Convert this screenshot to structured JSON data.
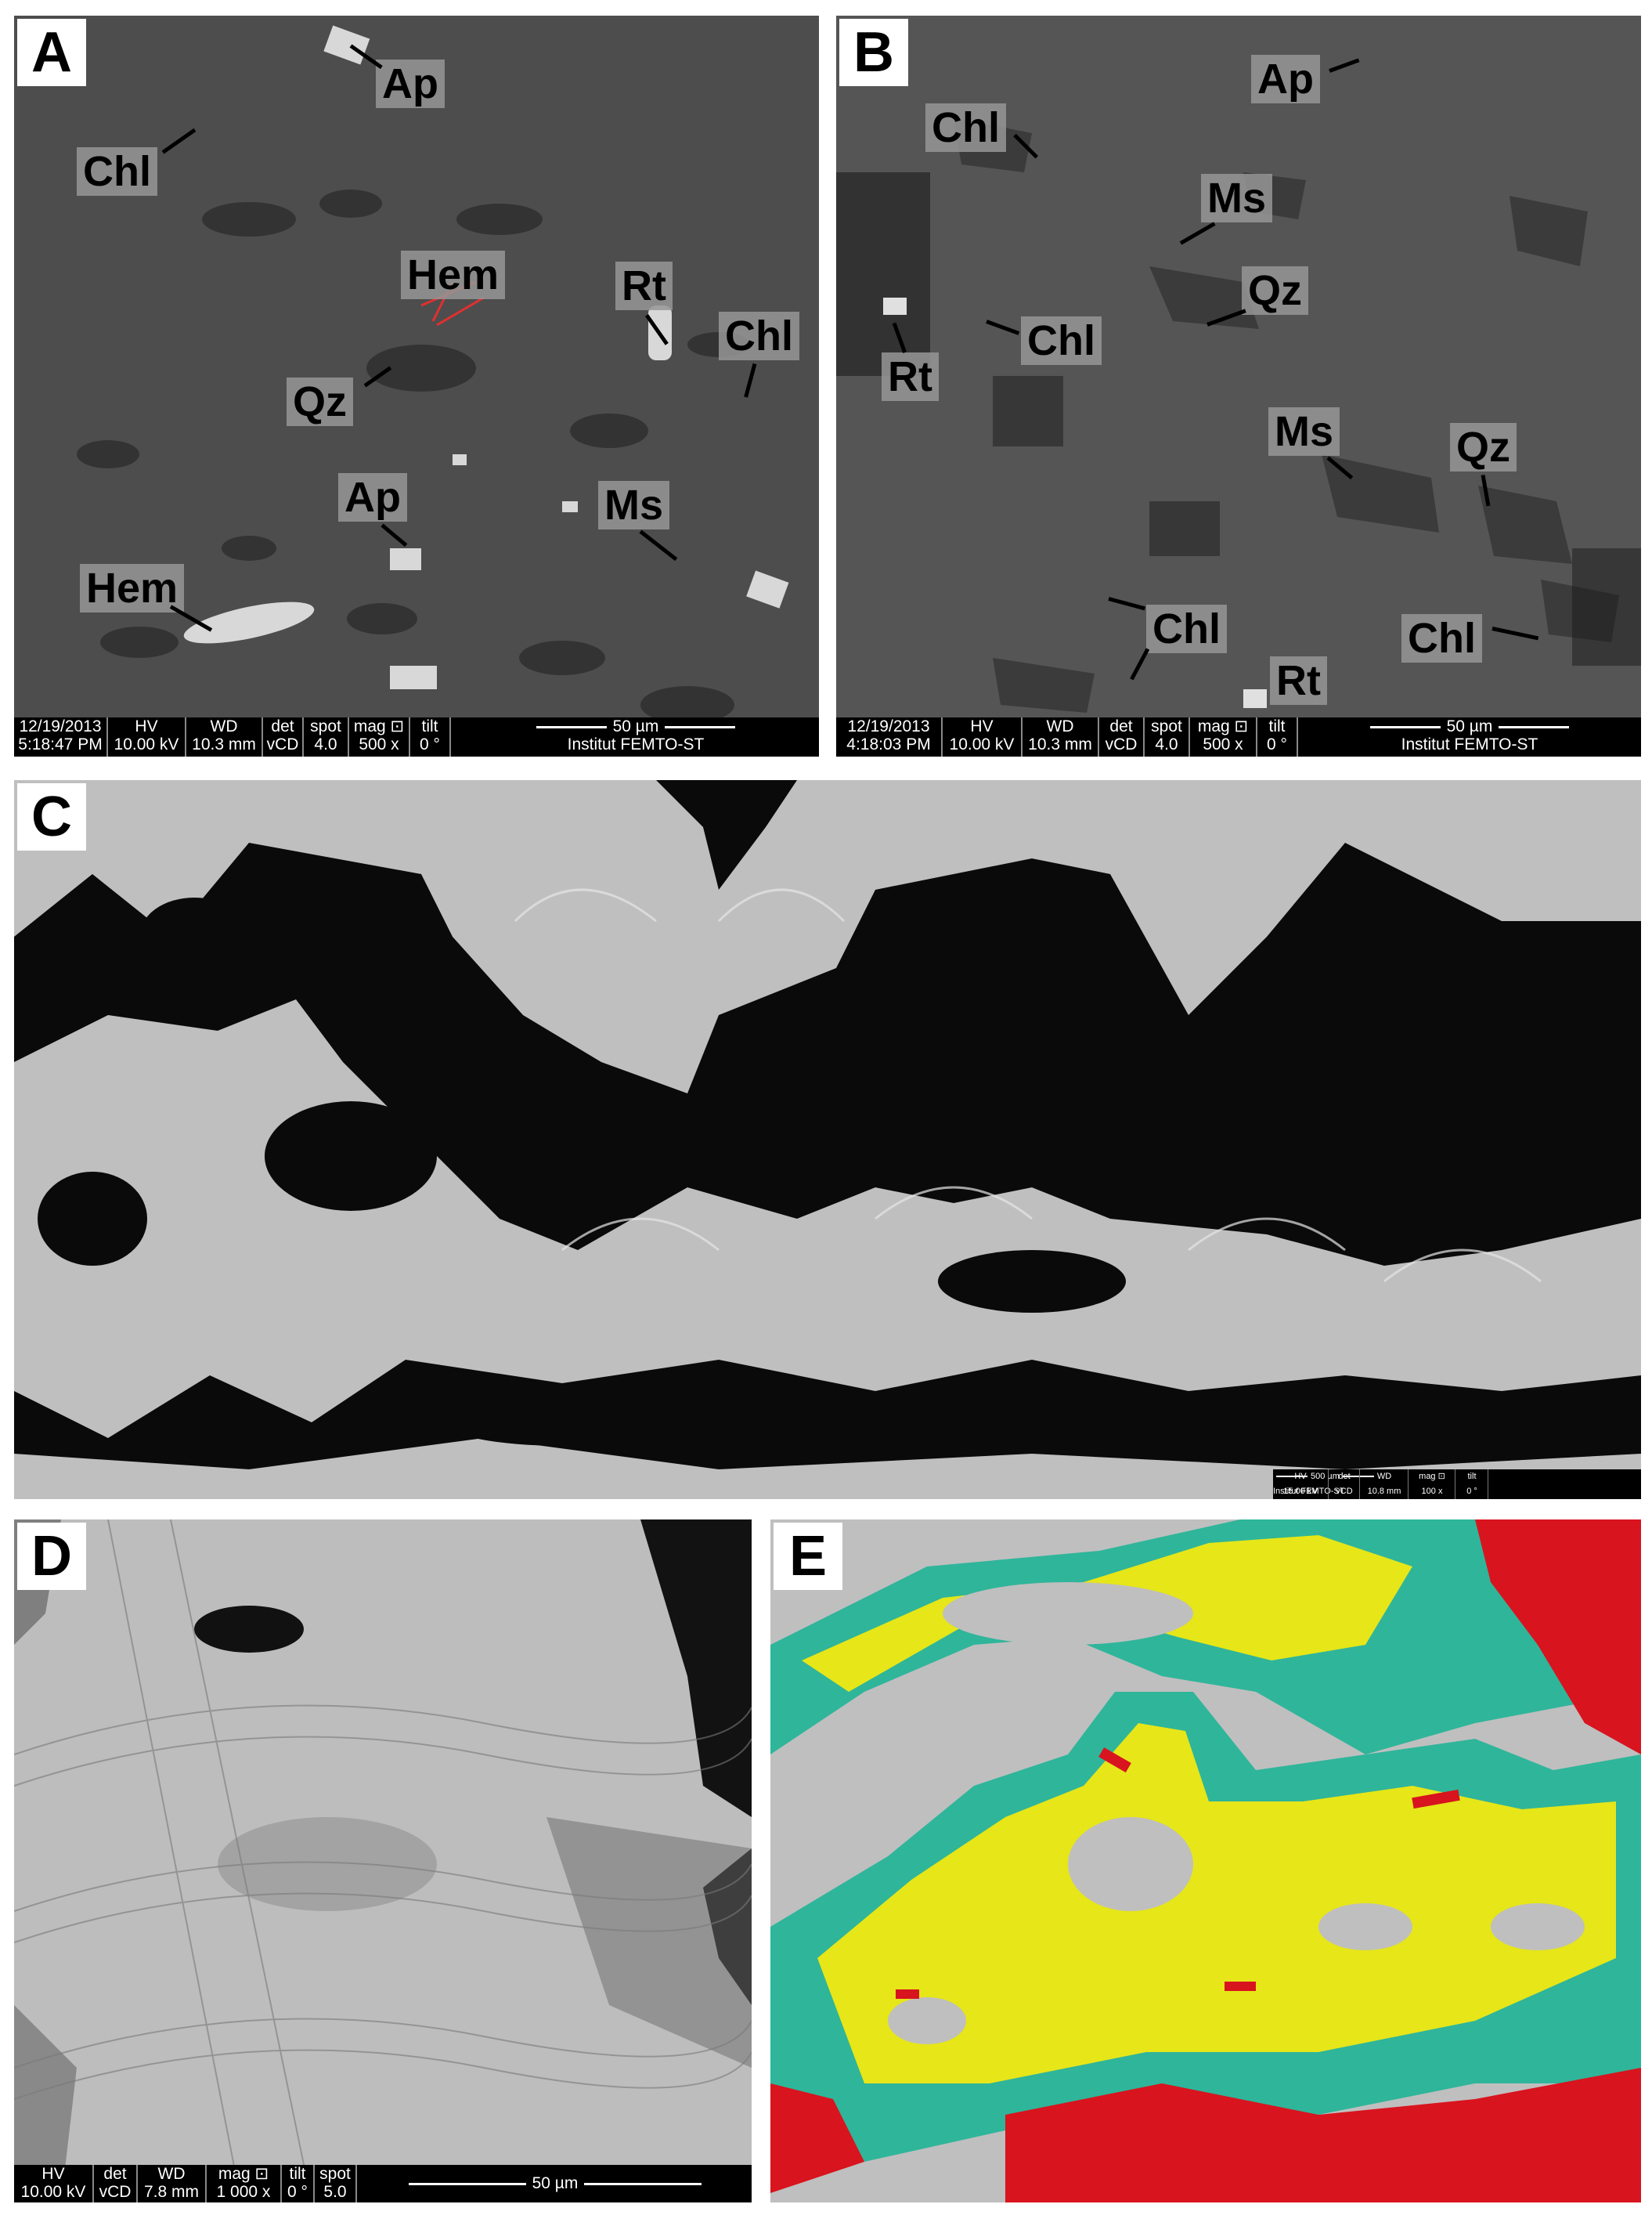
{
  "panels": {
    "a": {
      "letter": "A",
      "labels": {
        "ap1": "Ap",
        "chl": "Chl",
        "hem1": "Hem",
        "rt": "Rt",
        "chl2": "Chl",
        "qz": "Qz",
        "ap2": "Ap",
        "ms": "Ms",
        "hem2": "Hem"
      },
      "databar": {
        "date": "12/19/2013",
        "time": "5:18:47 PM",
        "hv_label": "HV",
        "hv": "10.00 kV",
        "wd_label": "WD",
        "wd": "10.3 mm",
        "det_label": "det",
        "det": "vCD",
        "spot_label": "spot",
        "spot": "4.0",
        "mag_label": "mag ⊡",
        "mag": "500 x",
        "tilt_label": "tilt",
        "tilt": "0 °",
        "scale": "50 µm",
        "institute": "Institut FEMTO-ST"
      }
    },
    "b": {
      "letter": "B",
      "labels": {
        "ap": "Ap",
        "chl1": "Chl",
        "ms1": "Ms",
        "qz1": "Qz",
        "chl2": "Chl",
        "rt1": "Rt",
        "ms2": "Ms",
        "qz2": "Qz",
        "chl3": "Chl",
        "chl4": "Chl",
        "rt2": "Rt"
      },
      "databar": {
        "date": "12/19/2013",
        "time": "4:18:03 PM",
        "hv_label": "HV",
        "hv": "10.00 kV",
        "wd_label": "WD",
        "wd": "10.3 mm",
        "det_label": "det",
        "det": "vCD",
        "spot_label": "spot",
        "spot": "4.0",
        "mag_label": "mag ⊡",
        "mag": "500 x",
        "tilt_label": "tilt",
        "tilt": "0 °",
        "scale": "50 µm",
        "institute": "Institut FEMTO-ST"
      }
    },
    "c": {
      "letter": "C",
      "databar": {
        "hv_label": "HV",
        "hv": "15.00 kV",
        "det_label": "det",
        "det": "vCD",
        "wd_label": "WD",
        "wd": "10.8 mm",
        "mag_label": "mag ⊡",
        "mag": "100 x",
        "tilt_label": "tilt",
        "tilt": "0 °",
        "scale": "500 µm",
        "institute": "Institut FEMTO-ST"
      }
    },
    "d": {
      "letter": "D",
      "databar": {
        "hv_label": "HV",
        "hv": "10.00 kV",
        "det_label": "det",
        "det": "vCD",
        "wd_label": "WD",
        "wd": "7.8 mm",
        "mag_label": "mag ⊡",
        "mag": "1 000 x",
        "tilt_label": "tilt",
        "tilt": "0 °",
        "spot_label": "spot",
        "spot": "5.0",
        "scale": "50 µm"
      }
    },
    "e": {
      "letter": "E"
    }
  },
  "colors": {
    "sem_dark": "#4a4a4a",
    "sem_light": "#c8c8c8",
    "void": "#0a0a0a",
    "map_yellow": "#e6e619",
    "map_green": "#2fb59a",
    "map_red": "#d8141e",
    "map_grey": "#bdbdbd"
  }
}
